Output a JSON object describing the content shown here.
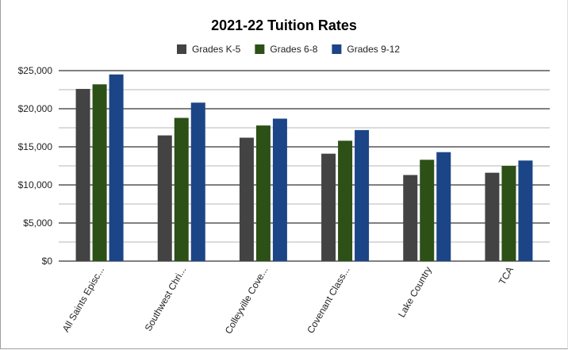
{
  "chart_data": {
    "type": "bar",
    "title": "2021-22 Tuition Rates",
    "categories": [
      "All Saints Episc...",
      "Southwest Chri...",
      "Colleyville Cove...",
      "Covenant Class...",
      "Lake Country",
      "TCA"
    ],
    "series": [
      {
        "name": "Grades K-5",
        "color": "#434343",
        "values": [
          22600,
          16500,
          16200,
          14100,
          11300,
          11600
        ]
      },
      {
        "name": "Grades 6-8",
        "color": "#2c5016",
        "values": [
          23200,
          18800,
          17800,
          15800,
          13300,
          12500
        ]
      },
      {
        "name": "Grades 9-12",
        "color": "#1c4587",
        "values": [
          24500,
          20800,
          18700,
          17200,
          14300,
          13200
        ]
      }
    ],
    "ylim": [
      0,
      25000
    ],
    "yticks": [
      0,
      5000,
      10000,
      15000,
      20000,
      25000
    ],
    "ytick_labels": [
      "$0",
      "$5,000",
      "$10,000",
      "$15,000",
      "$20,000",
      "$25,000"
    ],
    "grid": true,
    "legend_position": "top",
    "xlabel": "",
    "ylabel": ""
  }
}
